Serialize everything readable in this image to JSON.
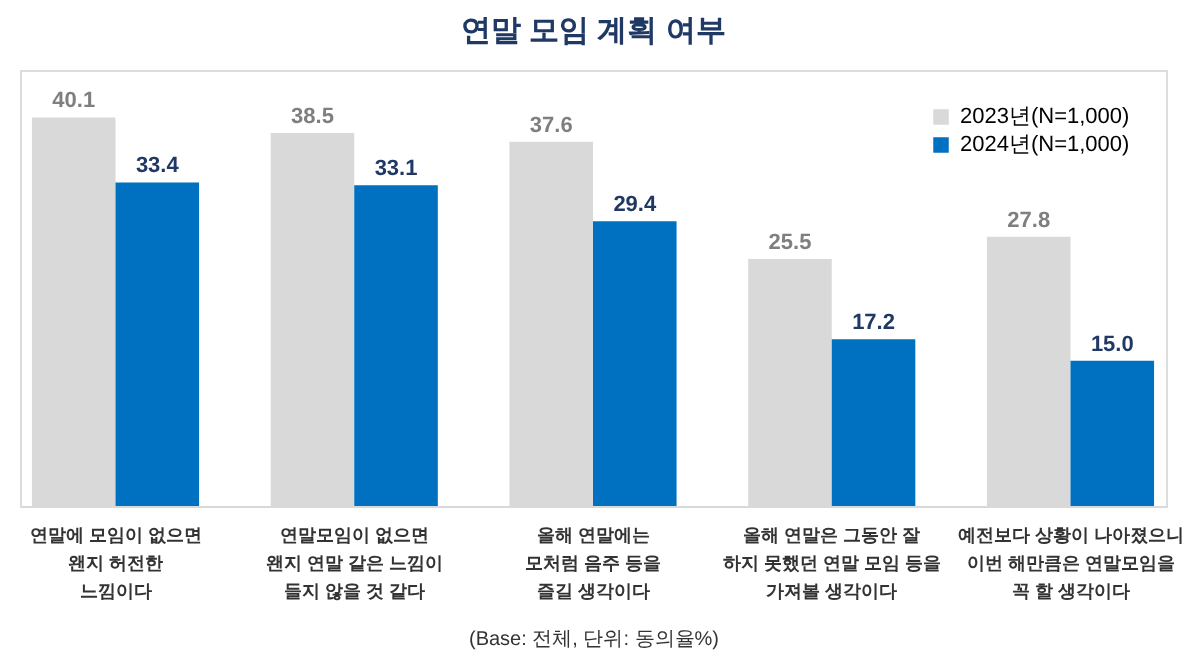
{
  "chart_data": {
    "type": "bar",
    "title": "연말 모임 계획 여부",
    "categories": [
      "연말에 모임이 없으면\n왠지 허전한\n느낌이다",
      "연말모임이 없으면\n왠지 연말 같은 느낌이\n들지 않을 것 같다",
      "올해 연말에는\n모처럼 음주 등을\n즐길 생각이다",
      "올해 연말은 그동안 잘\n하지 못했던 연말 모임 등을\n가져볼 생각이다",
      "예전보다 상황이 나아졌으니\n이번 해만큼은 연말모임을\n꼭 할 생각이다"
    ],
    "series": [
      {
        "name": "2023년(N=1,000)",
        "color": "#d9d9d9",
        "values": [
          40.1,
          38.5,
          37.6,
          25.5,
          27.8
        ],
        "value_labels": [
          "40.1",
          "38.5",
          "37.6",
          "25.5",
          "27.8"
        ]
      },
      {
        "name": "2024년(N=1,000)",
        "color": "#0070c0",
        "values": [
          33.4,
          33.1,
          29.4,
          17.2,
          15.0
        ],
        "value_labels": [
          "33.4",
          "33.1",
          "29.4",
          "17.2",
          "15.0"
        ]
      }
    ],
    "legend": "top right",
    "tick_labels": "x",
    "annotations": [
      "(Base: 전체, 단위: 동의율%)"
    ]
  }
}
